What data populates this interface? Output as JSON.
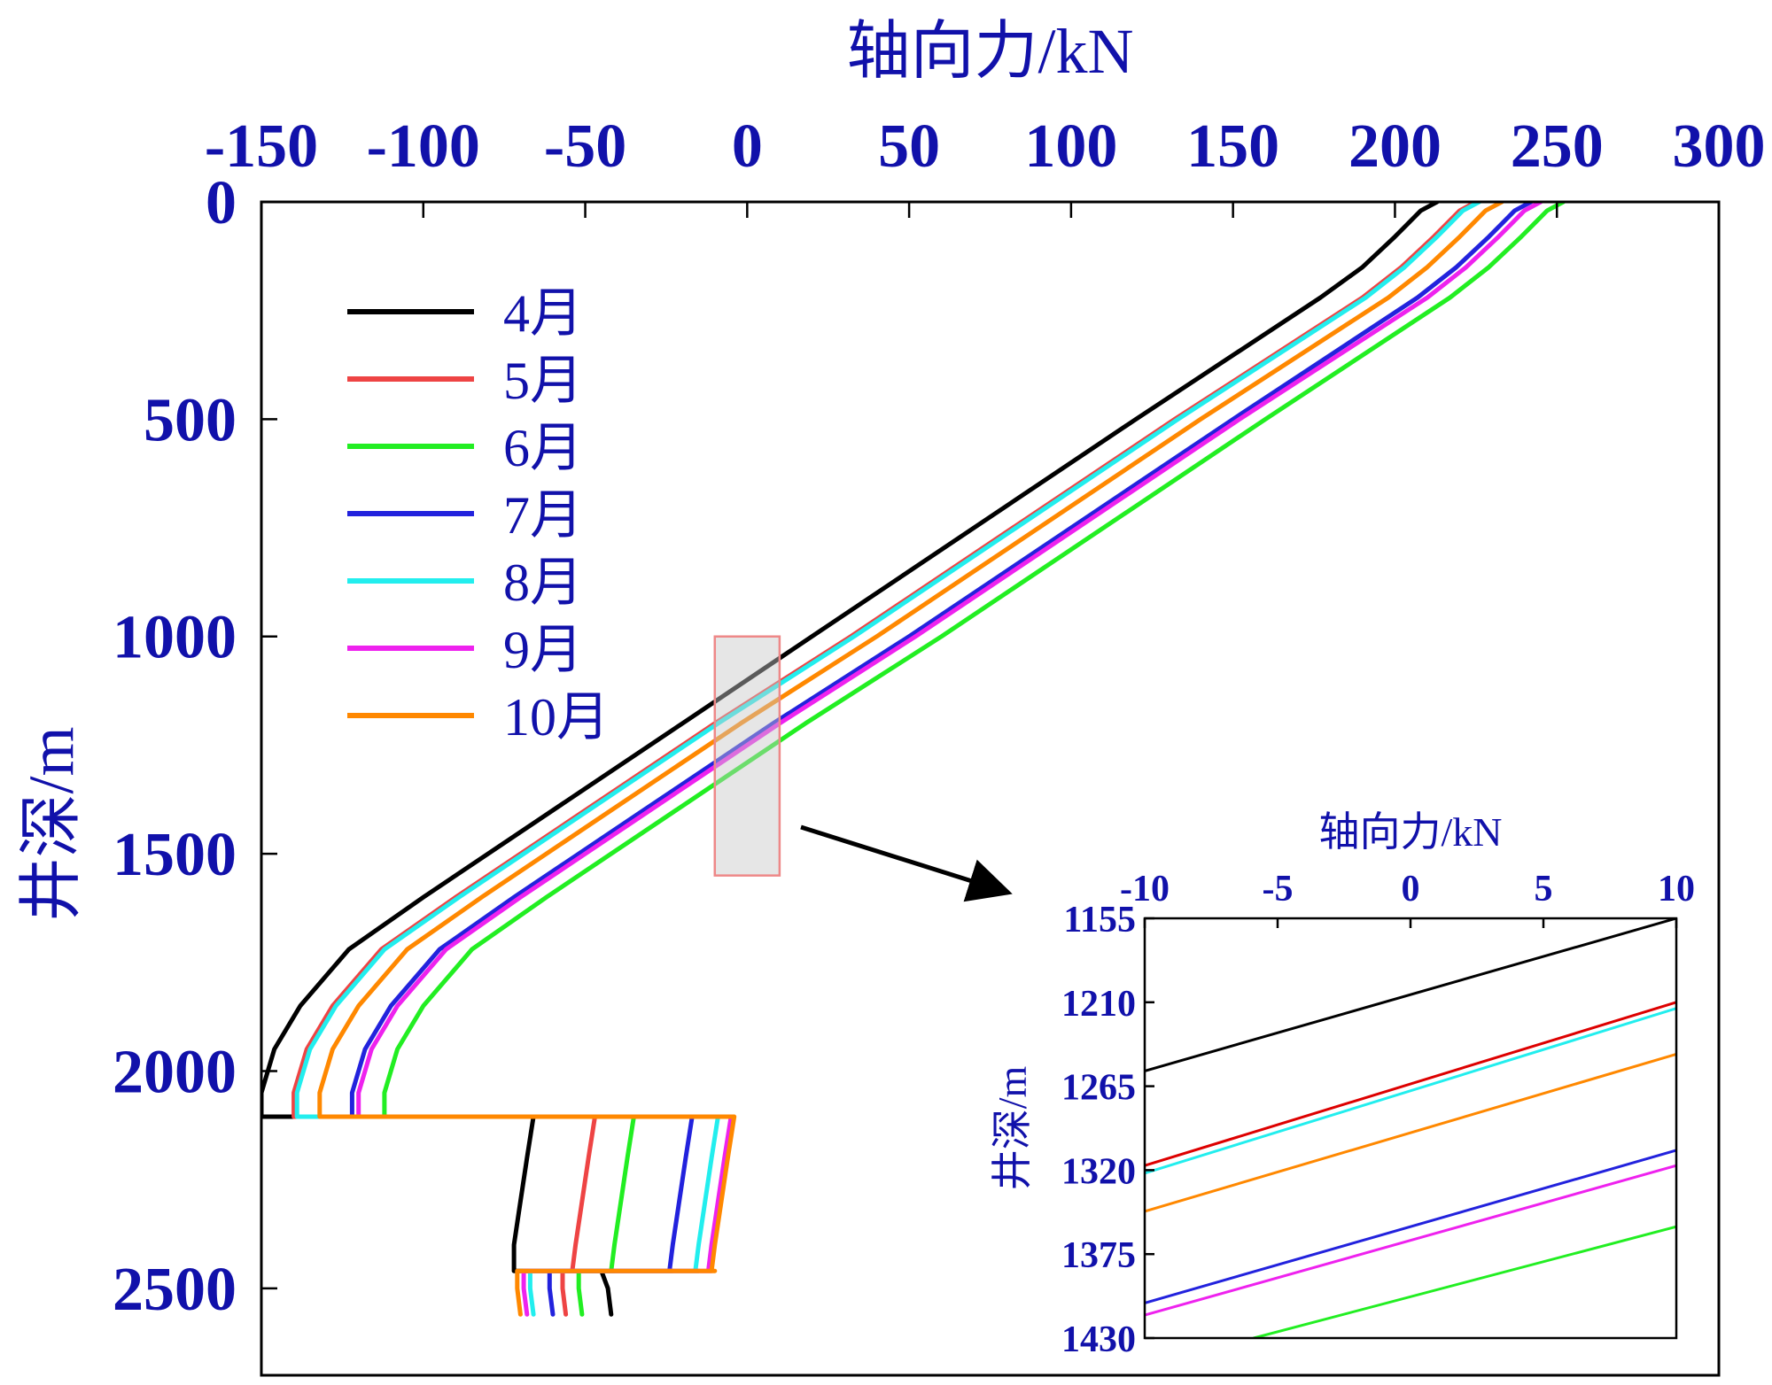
{
  "chart_data": [
    {
      "id": "main",
      "type": "line",
      "title": "",
      "xlabel": "轴向力/kN",
      "ylabel": "井深/m",
      "x_axis_position": "top",
      "y_axis_inverted": true,
      "xlim": [
        -150,
        300
      ],
      "ylim": [
        0,
        2700
      ],
      "xticks": [
        -150,
        -100,
        -50,
        0,
        50,
        100,
        150,
        200,
        250,
        300
      ],
      "yticks": [
        0,
        500,
        1000,
        1500,
        2000,
        2500
      ],
      "grid": false,
      "legend_position": "top-left",
      "zoom_box": {
        "x": [
          -10,
          10
        ],
        "y": [
          1000,
          1550
        ]
      },
      "series": [
        {
          "name": "4月",
          "color": "#000000",
          "points": [
            [
              213,
              0
            ],
            [
              208,
              20
            ],
            [
              200,
              80
            ],
            [
              190,
              150
            ],
            [
              177,
              220
            ],
            [
              120,
              500
            ],
            [
              20,
              1000
            ],
            [
              -20,
              1200
            ],
            [
              -60,
              1400
            ],
            [
              -100,
              1600
            ],
            [
              -123,
              1720
            ],
            [
              -138,
              1850
            ],
            [
              -146,
              1950
            ],
            [
              -150,
              2050
            ],
            [
              -150,
              2105
            ],
            [
              -131,
              2105
            ],
            [
              -66,
              2105
            ],
            [
              -68,
              2200
            ],
            [
              -70,
              2300
            ],
            [
              -72,
              2400
            ],
            [
              -72,
              2460
            ],
            [
              -71,
              2460
            ],
            [
              -45,
              2460
            ],
            [
              -43,
              2500
            ],
            [
              -42,
              2560
            ]
          ]
        },
        {
          "name": "5月",
          "color": "#ee4444",
          "points": [
            [
              225,
              0
            ],
            [
              220,
              20
            ],
            [
              212,
              80
            ],
            [
              202,
              150
            ],
            [
              190,
              220
            ],
            [
              132,
              500
            ],
            [
              32,
              1000
            ],
            [
              -10,
              1200
            ],
            [
              -50,
              1400
            ],
            [
              -90,
              1600
            ],
            [
              -113,
              1720
            ],
            [
              -128,
              1850
            ],
            [
              -136,
              1950
            ],
            [
              -140,
              2050
            ],
            [
              -140,
              2105
            ],
            [
              -131,
              2105
            ],
            [
              -47,
              2105
            ],
            [
              -49,
              2200
            ],
            [
              -51,
              2300
            ],
            [
              -53,
              2400
            ],
            [
              -54,
              2460
            ],
            [
              -53,
              2460
            ],
            [
              -57,
              2460
            ],
            [
              -57,
              2500
            ],
            [
              -56,
              2560
            ]
          ]
        },
        {
          "name": "6月",
          "color": "#22ee22",
          "points": [
            [
              252,
              0
            ],
            [
              247,
              20
            ],
            [
              239,
              80
            ],
            [
              229,
              150
            ],
            [
              217,
              220
            ],
            [
              160,
              500
            ],
            [
              60,
              1000
            ],
            [
              18,
              1200
            ],
            [
              -22,
              1400
            ],
            [
              -62,
              1600
            ],
            [
              -85,
              1720
            ],
            [
              -100,
              1850
            ],
            [
              -108,
              1950
            ],
            [
              -112,
              2050
            ],
            [
              -112,
              2105
            ],
            [
              -131,
              2105
            ],
            [
              -35,
              2105
            ],
            [
              -37,
              2200
            ],
            [
              -39,
              2300
            ],
            [
              -41,
              2400
            ],
            [
              -42,
              2460
            ],
            [
              -41,
              2460
            ],
            [
              -52,
              2460
            ],
            [
              -52,
              2500
            ],
            [
              -51,
              2560
            ]
          ]
        },
        {
          "name": "7月",
          "color": "#2222dd",
          "points": [
            [
              242,
              0
            ],
            [
              237,
              20
            ],
            [
              229,
              80
            ],
            [
              219,
              150
            ],
            [
              207,
              220
            ],
            [
              150,
              500
            ],
            [
              50,
              1000
            ],
            [
              8,
              1200
            ],
            [
              -32,
              1400
            ],
            [
              -72,
              1600
            ],
            [
              -95,
              1720
            ],
            [
              -110,
              1850
            ],
            [
              -118,
              1950
            ],
            [
              -122,
              2050
            ],
            [
              -122,
              2105
            ],
            [
              -131,
              2105
            ],
            [
              -17,
              2105
            ],
            [
              -19,
              2200
            ],
            [
              -21,
              2300
            ],
            [
              -23,
              2400
            ],
            [
              -24,
              2460
            ],
            [
              -23,
              2460
            ],
            [
              -61,
              2460
            ],
            [
              -61,
              2500
            ],
            [
              -60,
              2560
            ]
          ]
        },
        {
          "name": "8月",
          "color": "#22eeee",
          "points": [
            [
              226,
              0
            ],
            [
              221,
              20
            ],
            [
              213,
              80
            ],
            [
              203,
              150
            ],
            [
              191,
              220
            ],
            [
              133,
              500
            ],
            [
              33,
              1000
            ],
            [
              -9,
              1200
            ],
            [
              -49,
              1400
            ],
            [
              -89,
              1600
            ],
            [
              -112,
              1720
            ],
            [
              -127,
              1850
            ],
            [
              -135,
              1950
            ],
            [
              -139,
              2050
            ],
            [
              -139,
              2105
            ],
            [
              -131,
              2105
            ],
            [
              -9,
              2105
            ],
            [
              -11,
              2200
            ],
            [
              -13,
              2300
            ],
            [
              -15,
              2400
            ],
            [
              -16,
              2460
            ],
            [
              -15,
              2460
            ],
            [
              -67,
              2460
            ],
            [
              -67,
              2500
            ],
            [
              -66,
              2560
            ]
          ]
        },
        {
          "name": "9月",
          "color": "#ee22ee",
          "points": [
            [
              245,
              0
            ],
            [
              240,
              20
            ],
            [
              232,
              80
            ],
            [
              222,
              150
            ],
            [
              210,
              220
            ],
            [
              152,
              500
            ],
            [
              52,
              1000
            ],
            [
              10,
              1200
            ],
            [
              -30,
              1400
            ],
            [
              -70,
              1600
            ],
            [
              -93,
              1720
            ],
            [
              -108,
              1850
            ],
            [
              -116,
              1950
            ],
            [
              -120,
              2050
            ],
            [
              -120,
              2105
            ],
            [
              -131,
              2105
            ],
            [
              -5,
              2105
            ],
            [
              -7,
              2200
            ],
            [
              -9,
              2300
            ],
            [
              -11,
              2400
            ],
            [
              -12,
              2460
            ],
            [
              -11,
              2460
            ],
            [
              -69,
              2460
            ],
            [
              -69,
              2500
            ],
            [
              -68,
              2560
            ]
          ]
        },
        {
          "name": "10月",
          "color": "#ff8800",
          "points": [
            [
              233,
              0
            ],
            [
              228,
              20
            ],
            [
              220,
              80
            ],
            [
              210,
              150
            ],
            [
              198,
              220
            ],
            [
              140,
              500
            ],
            [
              40,
              1000
            ],
            [
              -2,
              1200
            ],
            [
              -42,
              1400
            ],
            [
              -82,
              1600
            ],
            [
              -105,
              1720
            ],
            [
              -120,
              1850
            ],
            [
              -128,
              1950
            ],
            [
              -132,
              2050
            ],
            [
              -132,
              2105
            ],
            [
              -131,
              2105
            ],
            [
              -4,
              2105
            ],
            [
              -6,
              2200
            ],
            [
              -8,
              2300
            ],
            [
              -10,
              2400
            ],
            [
              -11,
              2460
            ],
            [
              -10,
              2460
            ],
            [
              -71,
              2460
            ],
            [
              -71,
              2500
            ],
            [
              -70,
              2560
            ]
          ]
        }
      ]
    },
    {
      "id": "inset",
      "type": "line",
      "title": "",
      "xlabel": "轴向力/kN",
      "ylabel": "井深/m",
      "x_axis_position": "top",
      "y_axis_inverted": true,
      "xlim": [
        -10,
        10
      ],
      "ylim": [
        1155,
        1430
      ],
      "xticks": [
        -10,
        -5,
        0,
        5,
        10
      ],
      "yticks": [
        1155,
        1210,
        1265,
        1320,
        1375,
        1430
      ],
      "grid": false,
      "series": [
        {
          "name": "4月",
          "color": "#000000",
          "points": [
            [
              -10,
              1255
            ],
            [
              10,
              1155
            ]
          ]
        },
        {
          "name": "5月",
          "color": "#dd0000",
          "points": [
            [
              -10,
              1317
            ],
            [
              10,
              1210
            ]
          ]
        },
        {
          "name": "8月",
          "color": "#22eeee",
          "points": [
            [
              -10,
              1322
            ],
            [
              10,
              1214
            ]
          ]
        },
        {
          "name": "10月",
          "color": "#ff8800",
          "points": [
            [
              -10,
              1347
            ],
            [
              10,
              1244
            ]
          ]
        },
        {
          "name": "7月",
          "color": "#2222dd",
          "points": [
            [
              -10,
              1407
            ],
            [
              10,
              1307
            ]
          ]
        },
        {
          "name": "9月",
          "color": "#ee22ee",
          "points": [
            [
              -10,
              1415
            ],
            [
              10,
              1317
            ]
          ]
        },
        {
          "name": "6月",
          "color": "#22ee22",
          "points": [
            [
              -5.9,
              1430
            ],
            [
              10,
              1357
            ]
          ]
        }
      ]
    }
  ]
}
